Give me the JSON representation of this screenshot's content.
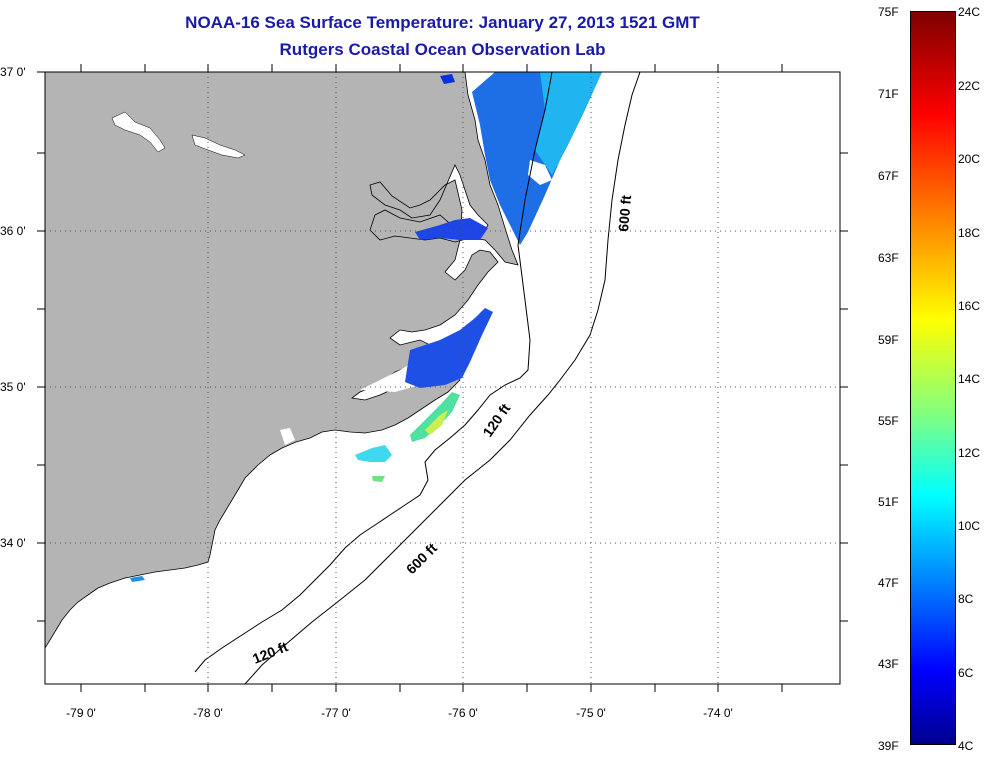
{
  "title_line1": "NOAA-16 Sea Surface Temperature:  January 27, 2013 1521 GMT",
  "title_line2": "Rutgers Coastal Ocean Observation Lab",
  "map": {
    "lat_labels": [
      "37 0'",
      "36 0'",
      "35 0'",
      "34 0'"
    ],
    "lon_labels": [
      "-79 0'",
      "-78 0'",
      "-77 0'",
      "-76 0'",
      "-75 0'",
      "-74 0'"
    ],
    "contour_labels": {
      "north_600": "600 ft",
      "south_600": "600 ft",
      "north_120": "120 ft",
      "south_120": "120 ft"
    },
    "land_color": "#b4b4b4",
    "gridline_style": "dotted"
  },
  "colorbar": {
    "fahrenheit_labels": [
      "75F",
      "71F",
      "67F",
      "63F",
      "59F",
      "55F",
      "51F",
      "47F",
      "43F",
      "39F"
    ],
    "celsius_labels": [
      "24C",
      "22C",
      "20C",
      "18C",
      "16C",
      "14C",
      "12C",
      "10C",
      "8C",
      "6C",
      "4C"
    ],
    "colors_top_to_bottom": [
      "#7f0000",
      "#ff0000",
      "#ff8000",
      "#ffff00",
      "#80ff80",
      "#00ffff",
      "#0080ff",
      "#0000ff",
      "#00008f"
    ]
  }
}
